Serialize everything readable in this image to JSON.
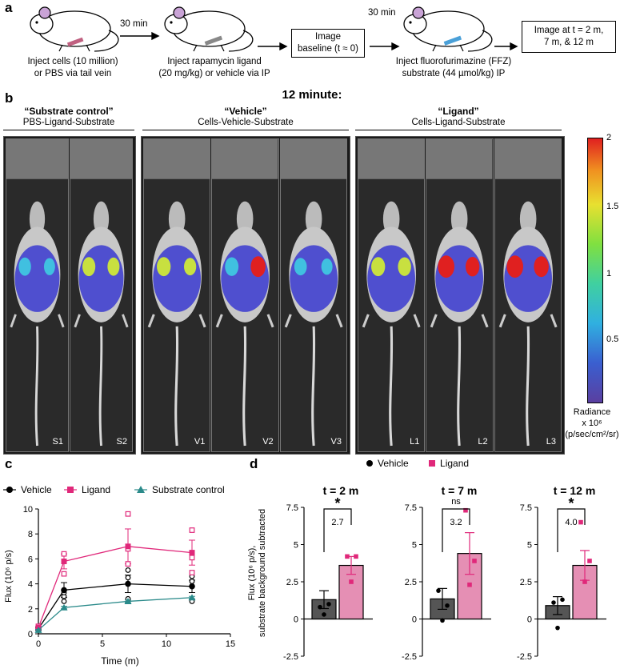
{
  "panel_a": {
    "label": "a",
    "step1": [
      "Inject cells (10 million)",
      "or PBS via tail vein"
    ],
    "arrow1": "30 min",
    "step2": [
      "Inject rapamycin ligand",
      "(20 mg/kg) or vehicle via IP"
    ],
    "box1": [
      "Image",
      "baseline (t ≈ 0)"
    ],
    "arrow2": "30 min",
    "step3": [
      "Inject fluorofurimazine (FFZ)",
      "substrate (44 µmol/kg) IP"
    ],
    "box2": [
      "Image at t = 2 m,",
      "7 m, & 12 m"
    ]
  },
  "panel_b": {
    "label": "b",
    "title": "12 minute:",
    "groups": [
      {
        "title": "“Substrate control”",
        "sub": "PBS-Ligand-Substrate"
      },
      {
        "title": "“Vehicle”",
        "sub": "Cells-Vehicle-Substrate"
      },
      {
        "title": "“Ligand”",
        "sub": "Cells-Ligand-Substrate"
      }
    ],
    "mice": [
      "S1",
      "S2",
      "V1",
      "V2",
      "V3",
      "L1",
      "L2",
      "L3"
    ],
    "colorbar": {
      "ticks": [
        "2",
        "1.5",
        "1",
        "0.5"
      ],
      "title": [
        "Radiance",
        "x 10⁶",
        "(p/sec/cm²/sr)"
      ]
    }
  },
  "panel_c": {
    "label": "c",
    "legend": [
      "Vehicle",
      "Ligand",
      "Substrate control"
    ],
    "colors": {
      "vehicle": "#000000",
      "ligand": "#e0287a",
      "substrate": "#2a8a8a"
    },
    "xlabel": "Time (m)",
    "ylabel": "Flux (10⁶ p/s)"
  },
  "panel_d": {
    "label": "d",
    "legend": [
      "Vehicle",
      "Ligand"
    ],
    "ylabel": [
      "Flux (10⁶ p/s),",
      "substrate background subtracted"
    ],
    "subplots": [
      {
        "title": "t = 2 m",
        "sig": "*",
        "ratio": "2.7"
      },
      {
        "title": "t = 7 m",
        "sig": "ns",
        "ratio": "3.2"
      },
      {
        "title": "t = 12 m",
        "sig": "*",
        "ratio": "4.0"
      }
    ]
  },
  "chart_data": [
    {
      "type": "line",
      "title": "",
      "xlabel": "Time (m)",
      "ylabel": "Flux (10^6 p/s)",
      "xlim": [
        0,
        15
      ],
      "ylim": [
        0,
        10
      ],
      "xticks": [
        "0",
        "5",
        "10",
        "15"
      ],
      "yticks": [
        "0",
        "2",
        "4",
        "6",
        "8",
        "10"
      ],
      "x": [
        0,
        2,
        7,
        12
      ],
      "series": [
        {
          "name": "Vehicle",
          "color": "#000000",
          "values": [
            0.4,
            3.5,
            4.0,
            3.8
          ],
          "err": [
            0.1,
            0.6,
            0.7,
            0.5
          ],
          "points": [
            [
              0,
              0.3
            ],
            [
              0,
              0.5
            ],
            [
              2,
              2.6
            ],
            [
              2,
              3.0
            ],
            [
              2,
              3.3
            ],
            [
              7,
              2.8
            ],
            [
              7,
              4.5
            ],
            [
              7,
              5.1
            ],
            [
              12,
              2.6
            ],
            [
              12,
              4.2
            ],
            [
              12,
              4.6
            ]
          ]
        },
        {
          "name": "Ligand",
          "color": "#e0287a",
          "values": [
            0.5,
            5.8,
            7.0,
            6.5
          ],
          "err": [
            0.1,
            0.6,
            1.4,
            1.0
          ],
          "points": [
            [
              0,
              0.4
            ],
            [
              0,
              0.6
            ],
            [
              2,
              4.8
            ],
            [
              2,
              5.8
            ],
            [
              2,
              6.4
            ],
            [
              7,
              5.6
            ],
            [
              7,
              6.8
            ],
            [
              7,
              9.6
            ],
            [
              12,
              4.9
            ],
            [
              12,
              6.1
            ],
            [
              12,
              8.3
            ]
          ]
        },
        {
          "name": "Substrate control",
          "color": "#2a8a8a",
          "values": [
            0.3,
            2.1,
            2.6,
            2.9
          ],
          "err": [
            0.05,
            0.1,
            0.1,
            0.1
          ],
          "points": [
            [
              0,
              0.3
            ],
            [
              2,
              2.1
            ],
            [
              7,
              2.6
            ],
            [
              12,
              2.9
            ]
          ]
        }
      ]
    },
    {
      "type": "bar",
      "title": "t = 2 m",
      "categories": [
        "Vehicle",
        "Ligand"
      ],
      "values": [
        1.3,
        3.6
      ],
      "err": [
        0.6,
        0.6
      ],
      "points": [
        [
          0.8,
          1.0,
          0.3
        ],
        [
          4.2,
          4.2,
          2.5
        ]
      ],
      "ylim": [
        -2.5,
        7.5
      ],
      "yticks": [
        "-2.5",
        "0",
        "2.5",
        "5",
        "7.5"
      ]
    },
    {
      "type": "bar",
      "title": "t = 7 m",
      "categories": [
        "Vehicle",
        "Ligand"
      ],
      "values": [
        1.35,
        4.4
      ],
      "err": [
        0.7,
        1.4
      ],
      "points": [
        [
          1.9,
          0.9,
          -0.1
        ],
        [
          7.3,
          3.9,
          2.3
        ]
      ],
      "ylim": [
        -2.5,
        7.5
      ],
      "yticks": [
        "-2.5",
        "0",
        "2.5",
        "5",
        "7.5"
      ]
    },
    {
      "type": "bar",
      "title": "t = 12 m",
      "categories": [
        "Vehicle",
        "Ligand"
      ],
      "values": [
        0.9,
        3.6
      ],
      "err": [
        0.6,
        1.0
      ],
      "points": [
        [
          1.1,
          1.3,
          -0.6
        ],
        [
          6.5,
          3.9,
          2.5
        ]
      ],
      "ylim": [
        -2.5,
        7.5
      ],
      "yticks": [
        "-2.5",
        "0",
        "2.5",
        "5",
        "7.5"
      ]
    }
  ]
}
